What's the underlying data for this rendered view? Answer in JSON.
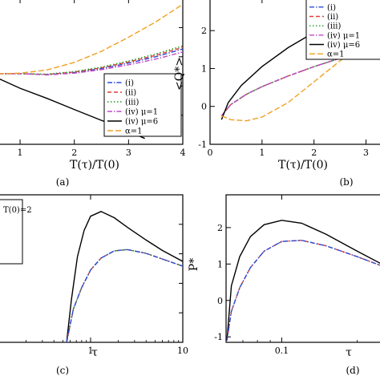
{
  "chart_data": [
    {
      "panel": "a",
      "type": "line",
      "panel_label": "(a)",
      "xlabel": "T(τ)/T(0)",
      "ylabel": "",
      "xlim": [
        0.6,
        4.0
      ],
      "ylim": [
        -3.0,
        3.2
      ],
      "x_ticks": [
        1,
        2,
        3,
        4
      ],
      "x_tick_labels": [
        "1",
        "2",
        "3",
        "4"
      ],
      "legend_position": "bottom-right",
      "series": [
        {
          "name": "(i)",
          "color": "#2b4bd6",
          "dash": "6,2,1.5,2",
          "points": [
            [
              0.6,
              0.0
            ],
            [
              1.0,
              0.0
            ],
            [
              1.5,
              -0.04
            ],
            [
              2.0,
              0.05
            ],
            [
              2.5,
              0.22
            ],
            [
              3.0,
              0.45
            ],
            [
              3.5,
              0.72
            ],
            [
              4.0,
              1.05
            ]
          ]
        },
        {
          "name": "(ii)",
          "color": "#e0403a",
          "dash": "5,3",
          "points": [
            [
              0.6,
              0.0
            ],
            [
              1.0,
              0.0
            ],
            [
              1.5,
              -0.03
            ],
            [
              2.0,
              0.07
            ],
            [
              2.5,
              0.25
            ],
            [
              3.0,
              0.5
            ],
            [
              3.5,
              0.78
            ],
            [
              4.0,
              1.12
            ]
          ]
        },
        {
          "name": "(iii)",
          "color": "#1a9a1a",
          "dash": "1.5,2.5",
          "points": [
            [
              0.6,
              0.0
            ],
            [
              1.0,
              0.0
            ],
            [
              1.5,
              -0.02
            ],
            [
              2.0,
              0.09
            ],
            [
              2.5,
              0.28
            ],
            [
              3.0,
              0.54
            ],
            [
              3.5,
              0.84
            ],
            [
              4.0,
              1.18
            ]
          ]
        },
        {
          "name": "(iv) μ=1",
          "color": "#c04ac8",
          "dash": "6,2,1.5,2",
          "points": [
            [
              0.6,
              0.0
            ],
            [
              1.0,
              0.0
            ],
            [
              1.5,
              -0.05
            ],
            [
              2.0,
              0.02
            ],
            [
              2.5,
              0.17
            ],
            [
              3.0,
              0.38
            ],
            [
              3.5,
              0.62
            ],
            [
              4.0,
              0.92
            ]
          ]
        },
        {
          "name": "(iv) μ=6",
          "color": "#000000",
          "dash": "",
          "points": [
            [
              0.6,
              -0.2
            ],
            [
              1.0,
              -0.62
            ],
            [
              1.5,
              -1.05
            ],
            [
              2.0,
              -1.52
            ],
            [
              2.5,
              -1.98
            ],
            [
              3.0,
              -2.45
            ],
            [
              3.3,
              -2.75
            ]
          ]
        },
        {
          "name": "α=1",
          "color": "#f0a020",
          "dash": "7,3",
          "points": [
            [
              0.6,
              0.0
            ],
            [
              1.0,
              0.02
            ],
            [
              1.5,
              0.16
            ],
            [
              2.0,
              0.48
            ],
            [
              2.5,
              0.95
            ],
            [
              3.0,
              1.55
            ],
            [
              3.5,
              2.2
            ],
            [
              4.0,
              2.95
            ]
          ]
        }
      ]
    },
    {
      "panel": "b",
      "type": "line",
      "panel_label": "(b)",
      "xlabel": "T(τ)/T(0)",
      "ylabel": "<Q*>",
      "xlim": [
        0.0,
        3.3
      ],
      "ylim": [
        -1.0,
        2.85
      ],
      "x_ticks": [
        0,
        1,
        2,
        3
      ],
      "x_tick_labels": [
        "0",
        "1",
        "2",
        "3"
      ],
      "y_ticks": [
        -1,
        0,
        1,
        2
      ],
      "y_tick_labels": [
        "-1",
        "0",
        "1",
        "2"
      ],
      "legend_position": "top-right",
      "series": [
        {
          "name": "(i)",
          "color": "#2b4bd6",
          "dash": "6,2,1.5,2",
          "points": [
            [
              0.22,
              -0.25
            ],
            [
              0.4,
              0.05
            ],
            [
              0.7,
              0.32
            ],
            [
              1.0,
              0.52
            ],
            [
              1.5,
              0.8
            ],
            [
              2.0,
              1.05
            ],
            [
              2.5,
              1.27
            ],
            [
              3.0,
              1.47
            ],
            [
              3.3,
              1.57
            ]
          ]
        },
        {
          "name": "(ii)",
          "color": "#e0403a",
          "dash": "5,3",
          "points": [
            [
              0.22,
              -0.25
            ],
            [
              0.4,
              0.05
            ],
            [
              0.7,
              0.32
            ],
            [
              1.0,
              0.52
            ],
            [
              1.5,
              0.8
            ],
            [
              2.0,
              1.05
            ],
            [
              2.5,
              1.27
            ],
            [
              3.0,
              1.47
            ],
            [
              3.3,
              1.57
            ]
          ]
        },
        {
          "name": "(iii)",
          "color": "#1a9a1a",
          "dash": "1.5,2.5",
          "points": [
            [
              0.22,
              -0.25
            ],
            [
              0.4,
              0.05
            ],
            [
              0.7,
              0.32
            ],
            [
              1.0,
              0.52
            ],
            [
              1.5,
              0.8
            ],
            [
              2.0,
              1.05
            ],
            [
              2.5,
              1.27
            ],
            [
              3.0,
              1.47
            ],
            [
              3.3,
              1.57
            ]
          ]
        },
        {
          "name": "(iv) μ=1",
          "color": "#c04ac8",
          "dash": "6,2,1.5,2",
          "points": [
            [
              0.22,
              -0.25
            ],
            [
              0.4,
              0.05
            ],
            [
              0.7,
              0.32
            ],
            [
              1.0,
              0.52
            ],
            [
              1.5,
              0.8
            ],
            [
              2.0,
              1.05
            ],
            [
              2.5,
              1.27
            ],
            [
              3.0,
              1.47
            ],
            [
              3.3,
              1.57
            ]
          ]
        },
        {
          "name": "(iv) μ=6",
          "color": "#000000",
          "dash": "",
          "points": [
            [
              0.22,
              -0.35
            ],
            [
              0.35,
              0.1
            ],
            [
              0.6,
              0.55
            ],
            [
              1.0,
              1.05
            ],
            [
              1.5,
              1.55
            ],
            [
              2.0,
              1.95
            ],
            [
              2.5,
              2.3
            ],
            [
              3.0,
              2.6
            ],
            [
              3.3,
              2.78
            ]
          ]
        },
        {
          "name": "α=1",
          "color": "#f0a020",
          "dash": "7,3",
          "points": [
            [
              0.22,
              -0.25
            ],
            [
              0.4,
              -0.35
            ],
            [
              0.7,
              -0.38
            ],
            [
              1.0,
              -0.28
            ],
            [
              1.5,
              0.1
            ],
            [
              2.0,
              0.65
            ],
            [
              2.5,
              1.2
            ],
            [
              3.0,
              1.72
            ],
            [
              3.3,
              2.08
            ]
          ]
        }
      ]
    },
    {
      "panel": "c",
      "type": "line",
      "panel_label": "(c)",
      "xlabel": "τ",
      "ylabel": "",
      "x_scale": "log",
      "xlim": [
        0.1,
        10
      ],
      "ylim": [
        -0.6,
        2.5
      ],
      "x_ticks": [
        1,
        10
      ],
      "x_tick_labels": [
        "1",
        "10"
      ],
      "legend_fragment": "T(0)=2",
      "series": [
        {
          "color": "#000000",
          "dash": "",
          "points": [
            [
              0.55,
              -0.6
            ],
            [
              0.62,
              0.3
            ],
            [
              0.72,
              1.2
            ],
            [
              0.85,
              1.75
            ],
            [
              1.0,
              2.05
            ],
            [
              1.3,
              2.15
            ],
            [
              1.8,
              2.02
            ],
            [
              2.5,
              1.82
            ],
            [
              4.0,
              1.55
            ],
            [
              6.0,
              1.33
            ],
            [
              10.0,
              1.1
            ]
          ]
        },
        {
          "color": "#e0403a",
          "dash": "5,3",
          "points": [
            [
              0.55,
              -0.6
            ],
            [
              0.65,
              0.1
            ],
            [
              0.8,
              0.55
            ],
            [
              1.0,
              0.92
            ],
            [
              1.3,
              1.17
            ],
            [
              1.8,
              1.32
            ],
            [
              2.5,
              1.35
            ],
            [
              4.0,
              1.27
            ],
            [
              6.0,
              1.15
            ],
            [
              10.0,
              1.0
            ]
          ]
        },
        {
          "color": "#1a9a1a",
          "dash": "1.5,2.5",
          "points": [
            [
              0.55,
              -0.6
            ],
            [
              0.65,
              0.1
            ],
            [
              0.8,
              0.55
            ],
            [
              1.0,
              0.92
            ],
            [
              1.3,
              1.17
            ],
            [
              1.8,
              1.32
            ],
            [
              2.5,
              1.35
            ],
            [
              4.0,
              1.27
            ],
            [
              6.0,
              1.15
            ],
            [
              10.0,
              1.0
            ]
          ]
        },
        {
          "color": "#2b4bd6",
          "dash": "6,2,1.5,2",
          "points": [
            [
              0.55,
              -0.6
            ],
            [
              0.65,
              0.1
            ],
            [
              0.8,
              0.55
            ],
            [
              1.0,
              0.92
            ],
            [
              1.3,
              1.17
            ],
            [
              1.8,
              1.32
            ],
            [
              2.5,
              1.35
            ],
            [
              4.0,
              1.27
            ],
            [
              6.0,
              1.15
            ],
            [
              10.0,
              1.0
            ]
          ]
        }
      ]
    },
    {
      "panel": "d",
      "type": "line",
      "panel_label": "(d)",
      "xlabel": "τ",
      "ylabel": "P*",
      "x_scale": "log",
      "xlim": [
        0.06,
        0.25
      ],
      "ylim": [
        -1.15,
        2.9
      ],
      "x_ticks": [
        0.1
      ],
      "x_tick_labels": [
        "0.1"
      ],
      "y_ticks": [
        -1,
        0,
        1,
        2
      ],
      "y_tick_labels": [
        "-1",
        "0",
        "1",
        "2"
      ],
      "series": [
        {
          "color": "#000000",
          "dash": "",
          "points": [
            [
              0.0605,
              -1.1
            ],
            [
              0.063,
              0.4
            ],
            [
              0.068,
              1.2
            ],
            [
              0.075,
              1.75
            ],
            [
              0.085,
              2.08
            ],
            [
              0.1,
              2.2
            ],
            [
              0.12,
              2.12
            ],
            [
              0.15,
              1.82
            ],
            [
              0.2,
              1.35
            ],
            [
              0.25,
              1.0
            ]
          ]
        },
        {
          "color": "#e0403a",
          "dash": "5,3",
          "points": [
            [
              0.0605,
              -1.1
            ],
            [
              0.063,
              -0.3
            ],
            [
              0.068,
              0.35
            ],
            [
              0.075,
              0.9
            ],
            [
              0.085,
              1.35
            ],
            [
              0.1,
              1.62
            ],
            [
              0.12,
              1.65
            ],
            [
              0.15,
              1.5
            ],
            [
              0.2,
              1.2
            ],
            [
              0.25,
              0.95
            ]
          ]
        },
        {
          "color": "#2b4bd6",
          "dash": "6,2,1.5,2",
          "points": [
            [
              0.0605,
              -1.1
            ],
            [
              0.063,
              -0.3
            ],
            [
              0.068,
              0.35
            ],
            [
              0.075,
              0.9
            ],
            [
              0.085,
              1.35
            ],
            [
              0.1,
              1.62
            ],
            [
              0.12,
              1.65
            ],
            [
              0.15,
              1.5
            ],
            [
              0.2,
              1.2
            ],
            [
              0.25,
              0.95
            ]
          ]
        }
      ]
    }
  ]
}
